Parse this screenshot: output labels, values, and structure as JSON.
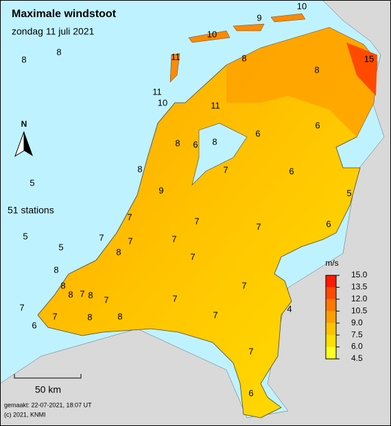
{
  "header": {
    "title": "Maximale windstoot",
    "subtitle": "zondag 11 juli 2021"
  },
  "stations": [
    8,
    8,
    9,
    10,
    10,
    11,
    15,
    8,
    8,
    11,
    10,
    11,
    6,
    6,
    8,
    6,
    8,
    8,
    7,
    6,
    5,
    5,
    9,
    7,
    7,
    7,
    6,
    5,
    7,
    7,
    7,
    5,
    8,
    7,
    8,
    8,
    8,
    7,
    8,
    7,
    7,
    7,
    4,
    7,
    7,
    8,
    8,
    7,
    6,
    7,
    6
  ],
  "station_count": "51 stations",
  "north": "N",
  "scale": "50 km",
  "legend": {
    "unit": "m/s",
    "colors": [
      "#ff1a00",
      "#ff4a00",
      "#ff7800",
      "#ffa000",
      "#ffc400",
      "#ffe000",
      "#ffff20"
    ],
    "labels": [
      "15.0",
      "13.5",
      "12.0",
      "10.5",
      "9.0",
      "7.5",
      "6.0",
      "4.5"
    ]
  },
  "footer": {
    "made": "gemaakt: 22-07-2021, 18:07 UT",
    "copyright": "(c) 2021, KNMI"
  }
}
